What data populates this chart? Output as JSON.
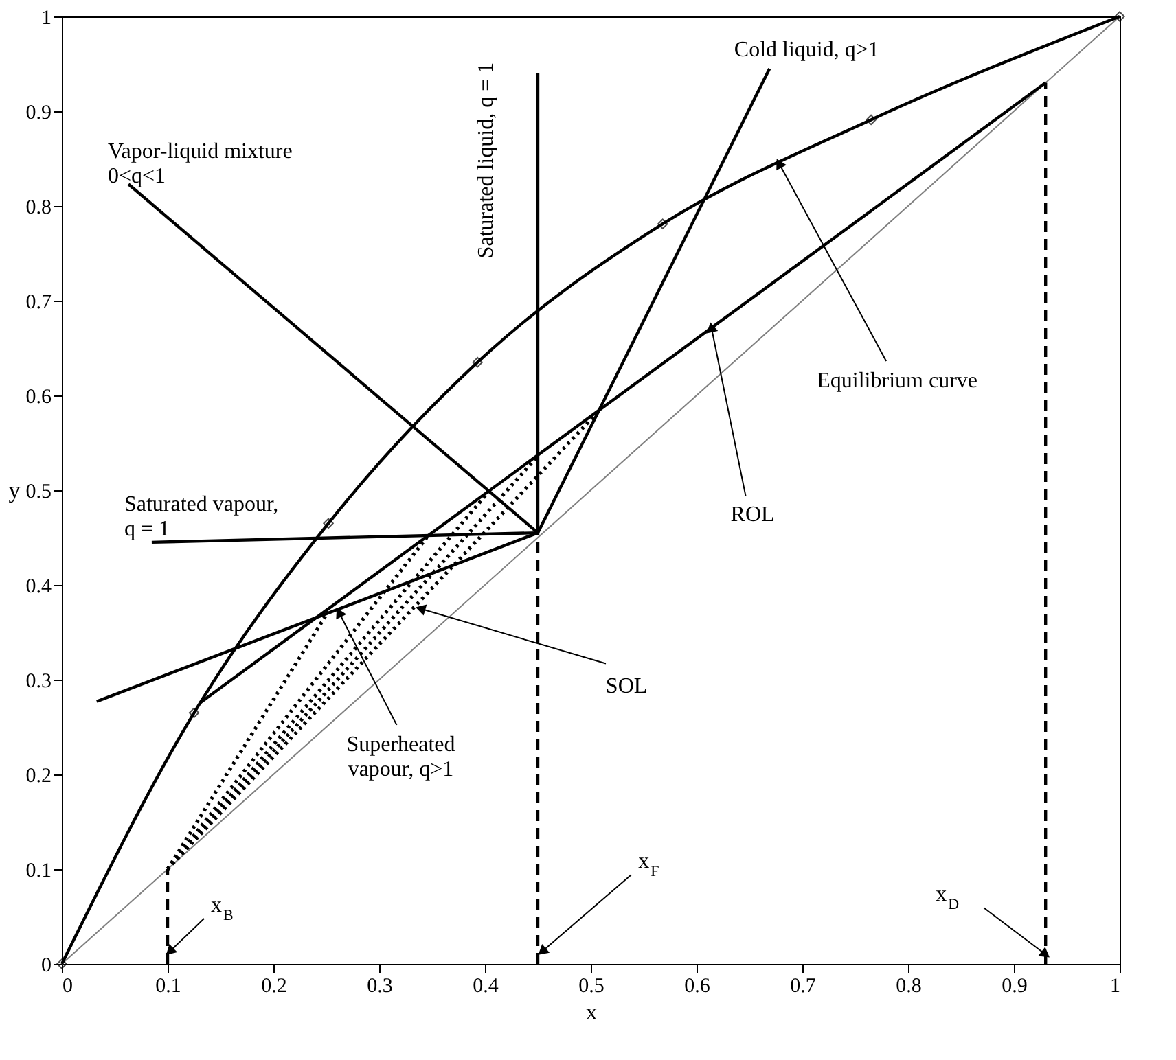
{
  "chart_data": {
    "type": "line",
    "xlabel": "x",
    "ylabel": "y",
    "xlim": [
      0,
      1
    ],
    "ylim": [
      0,
      1
    ],
    "xticks": [
      0,
      0.1,
      0.2,
      0.3,
      0.4,
      0.5,
      0.6,
      0.7,
      0.8,
      0.9,
      1
    ],
    "yticks": [
      0,
      0.1,
      0.2,
      0.3,
      0.4,
      0.5,
      0.6,
      0.7,
      0.8,
      0.9,
      1
    ],
    "grid": false,
    "marker": "none",
    "line_style": "solid",
    "series": [
      {
        "color": "#808080",
        "x": [
          0,
          1
        ],
        "values": [
          0,
          1
        ]
      },
      {
        "color": "#000000",
        "marker": "diamond",
        "x": [
          0,
          0.125,
          0.252,
          0.393,
          0.568,
          0.765,
          1
        ],
        "values": [
          0,
          0.265,
          0.465,
          0.635,
          0.781,
          0.891,
          1
        ]
      },
      {
        "color": "#000000",
        "x": [
          0.93,
          0.13
        ],
        "values": [
          0.93,
          0.275
        ]
      },
      {
        "color": "#000000",
        "x": [
          0.45,
          0.45
        ],
        "values": [
          0.455,
          0.94
        ]
      },
      {
        "color": "#000000",
        "x": [
          0.45,
          0.063
        ],
        "values": [
          0.455,
          0.823
        ]
      },
      {
        "color": "#000000",
        "x": [
          0.45,
          0.085
        ],
        "values": [
          0.455,
          0.445
        ]
      },
      {
        "color": "#000000",
        "x": [
          0.45,
          0.669
        ],
        "values": [
          0.455,
          0.945
        ]
      },
      {
        "color": "#000000",
        "x": [
          0.45,
          0.033
        ],
        "values": [
          0.455,
          0.277
        ]
      },
      {
        "color": "#000000",
        "line_style": "dotted",
        "x": [
          0.1,
          0.252
        ],
        "values": [
          0.1,
          0.372
        ]
      },
      {
        "color": "#000000",
        "line_style": "dotted",
        "x": [
          0.1,
          0.345
        ],
        "values": [
          0.1,
          0.45
        ]
      },
      {
        "color": "#000000",
        "line_style": "dotted",
        "x": [
          0.1,
          0.404
        ],
        "values": [
          0.1,
          0.499
        ]
      },
      {
        "color": "#000000",
        "line_style": "dotted",
        "x": [
          0.1,
          0.45
        ],
        "values": [
          0.1,
          0.536
        ]
      },
      {
        "color": "#000000",
        "line_style": "dotted",
        "x": [
          0.1,
          0.508
        ],
        "values": [
          0.1,
          0.584
        ]
      },
      {
        "color": "#000000",
        "line_style": "dashed",
        "x": [
          0.1,
          0.1
        ],
        "values": [
          0,
          0.1
        ]
      },
      {
        "color": "#000000",
        "line_style": "dashed",
        "x": [
          0.45,
          0.45
        ],
        "values": [
          0,
          0.455
        ]
      },
      {
        "color": "#000000",
        "line_style": "dashed",
        "x": [
          0.93,
          0.93
        ],
        "values": [
          0,
          0.93
        ]
      }
    ],
    "annotations": [
      {
        "text": "Vapor-liquid mixture\n0<q<1",
        "x": 0.063,
        "y": 0.823
      },
      {
        "text": "Saturated liquid, q = 1",
        "x": 0.45,
        "y": 0.94
      },
      {
        "text": "Cold liquid, q>1",
        "x": 0.669,
        "y": 0.945
      },
      {
        "text": "Saturated vapour,\nq = 1",
        "x": 0.085,
        "y": 0.445
      },
      {
        "text": "Equilibrium curve",
        "x": 0.678,
        "y": 0.845
      },
      {
        "text": "ROL",
        "x": 0.614,
        "y": 0.672
      },
      {
        "text": "SOL",
        "x": 0.339,
        "y": 0.375
      },
      {
        "text": "Superheated\nvapour, q>1",
        "x": 0.262,
        "y": 0.371
      },
      {
        "text": "x$_{B}$",
        "x": 0.102,
        "y": 0.013
      },
      {
        "text": "x$_{F}$",
        "x": 0.454,
        "y": 0.013
      },
      {
        "text": "x$_{D}$",
        "x": 0.93,
        "y": 0.01
      }
    ]
  }
}
